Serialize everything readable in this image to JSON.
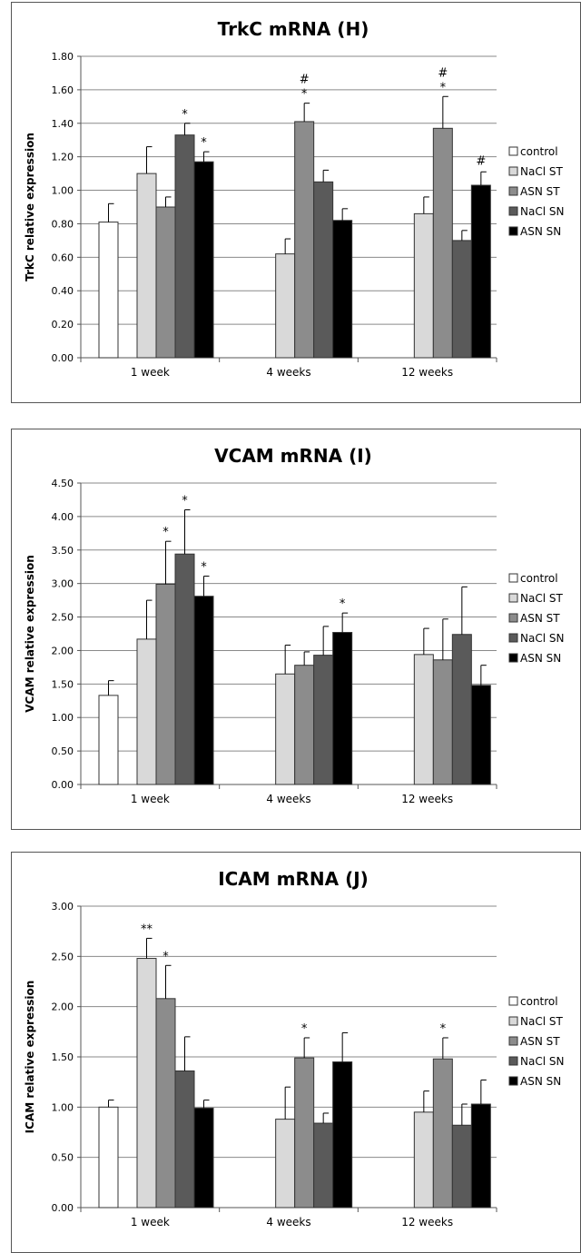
{
  "legend_labels": [
    "control",
    "NaCl ST",
    "ASN ST",
    "NaCl SN",
    "ASN SN"
  ],
  "series_colors": [
    "#ffffff",
    "#d9d9d9",
    "#8c8c8c",
    "#5a5a5a",
    "#000000"
  ],
  "chart_data": [
    {
      "type": "bar",
      "title": "TrkC mRNA (H)",
      "ylabel": "TrkC relative expression",
      "xlabel": "",
      "ylim": [
        0,
        1.8
      ],
      "ytick_step": 0.2,
      "ytick_decimals": 2,
      "categories": [
        "1 week",
        "4 weeks",
        "12 weeks"
      ],
      "grid": true,
      "legend": "right",
      "control": {
        "name": "control",
        "value": 0.81,
        "error": 0.11
      },
      "series": [
        {
          "name": "NaCl ST",
          "values": [
            1.1,
            0.62,
            0.86
          ],
          "errors": [
            0.16,
            0.09,
            0.1
          ],
          "annotations": [
            "",
            "",
            ""
          ]
        },
        {
          "name": "ASN ST",
          "values": [
            0.9,
            1.41,
            1.37
          ],
          "errors": [
            0.06,
            0.11,
            0.19
          ],
          "annotations": [
            "",
            "*#",
            "*#"
          ]
        },
        {
          "name": "NaCl SN",
          "values": [
            1.33,
            1.05,
            0.7
          ],
          "errors": [
            0.07,
            0.07,
            0.06
          ],
          "annotations": [
            "*",
            "",
            ""
          ]
        },
        {
          "name": "ASN SN",
          "values": [
            1.17,
            0.82,
            1.03
          ],
          "errors": [
            0.06,
            0.07,
            0.08
          ],
          "annotations": [
            "*",
            "",
            "#"
          ]
        }
      ]
    },
    {
      "type": "bar",
      "title": "VCAM mRNA (I)",
      "ylabel": "VCAM relative expression",
      "xlabel": "",
      "ylim": [
        0,
        4.5
      ],
      "ytick_step": 0.5,
      "ytick_decimals": 2,
      "categories": [
        "1 week",
        "4 weeks",
        "12 weeks"
      ],
      "grid": true,
      "legend": "right",
      "control": {
        "name": "control",
        "value": 1.33,
        "error": 0.22
      },
      "series": [
        {
          "name": "NaCl ST",
          "values": [
            2.17,
            1.65,
            1.94
          ],
          "errors": [
            0.58,
            0.43,
            0.39
          ],
          "annotations": [
            "",
            "",
            ""
          ]
        },
        {
          "name": "ASN ST",
          "values": [
            2.99,
            1.78,
            1.86
          ],
          "errors": [
            0.64,
            0.2,
            0.61
          ],
          "annotations": [
            "*",
            "",
            ""
          ]
        },
        {
          "name": "NaCl SN",
          "values": [
            3.44,
            1.93,
            2.24
          ],
          "errors": [
            0.66,
            0.43,
            0.71
          ],
          "annotations": [
            "*",
            "",
            ""
          ]
        },
        {
          "name": "ASN SN",
          "values": [
            2.81,
            2.27,
            1.48
          ],
          "errors": [
            0.3,
            0.29,
            0.3
          ],
          "annotations": [
            "*",
            "*",
            ""
          ]
        }
      ]
    },
    {
      "type": "bar",
      "title": "ICAM mRNA (J)",
      "ylabel": "ICAM relative expression",
      "xlabel": "",
      "ylim": [
        0,
        3.0
      ],
      "ytick_step": 0.5,
      "ytick_decimals": 2,
      "categories": [
        "1 week",
        "4 weeks",
        "12 weeks"
      ],
      "grid": true,
      "legend": "right",
      "control": {
        "name": "control",
        "value": 1.0,
        "error": 0.07
      },
      "series": [
        {
          "name": "NaCl ST",
          "values": [
            2.48,
            0.88,
            0.95
          ],
          "errors": [
            0.2,
            0.32,
            0.21
          ],
          "annotations": [
            "**",
            "",
            ""
          ]
        },
        {
          "name": "ASN ST",
          "values": [
            2.08,
            1.49,
            1.48
          ],
          "errors": [
            0.33,
            0.2,
            0.21
          ],
          "annotations": [
            "*",
            "*",
            "*"
          ]
        },
        {
          "name": "NaCl SN",
          "values": [
            1.36,
            0.84,
            0.82
          ],
          "errors": [
            0.34,
            0.1,
            0.21
          ],
          "annotations": [
            "",
            "",
            ""
          ]
        },
        {
          "name": "ASN SN",
          "values": [
            0.99,
            1.45,
            1.03
          ],
          "errors": [
            0.08,
            0.29,
            0.24
          ],
          "annotations": [
            "",
            "",
            ""
          ]
        }
      ]
    }
  ]
}
